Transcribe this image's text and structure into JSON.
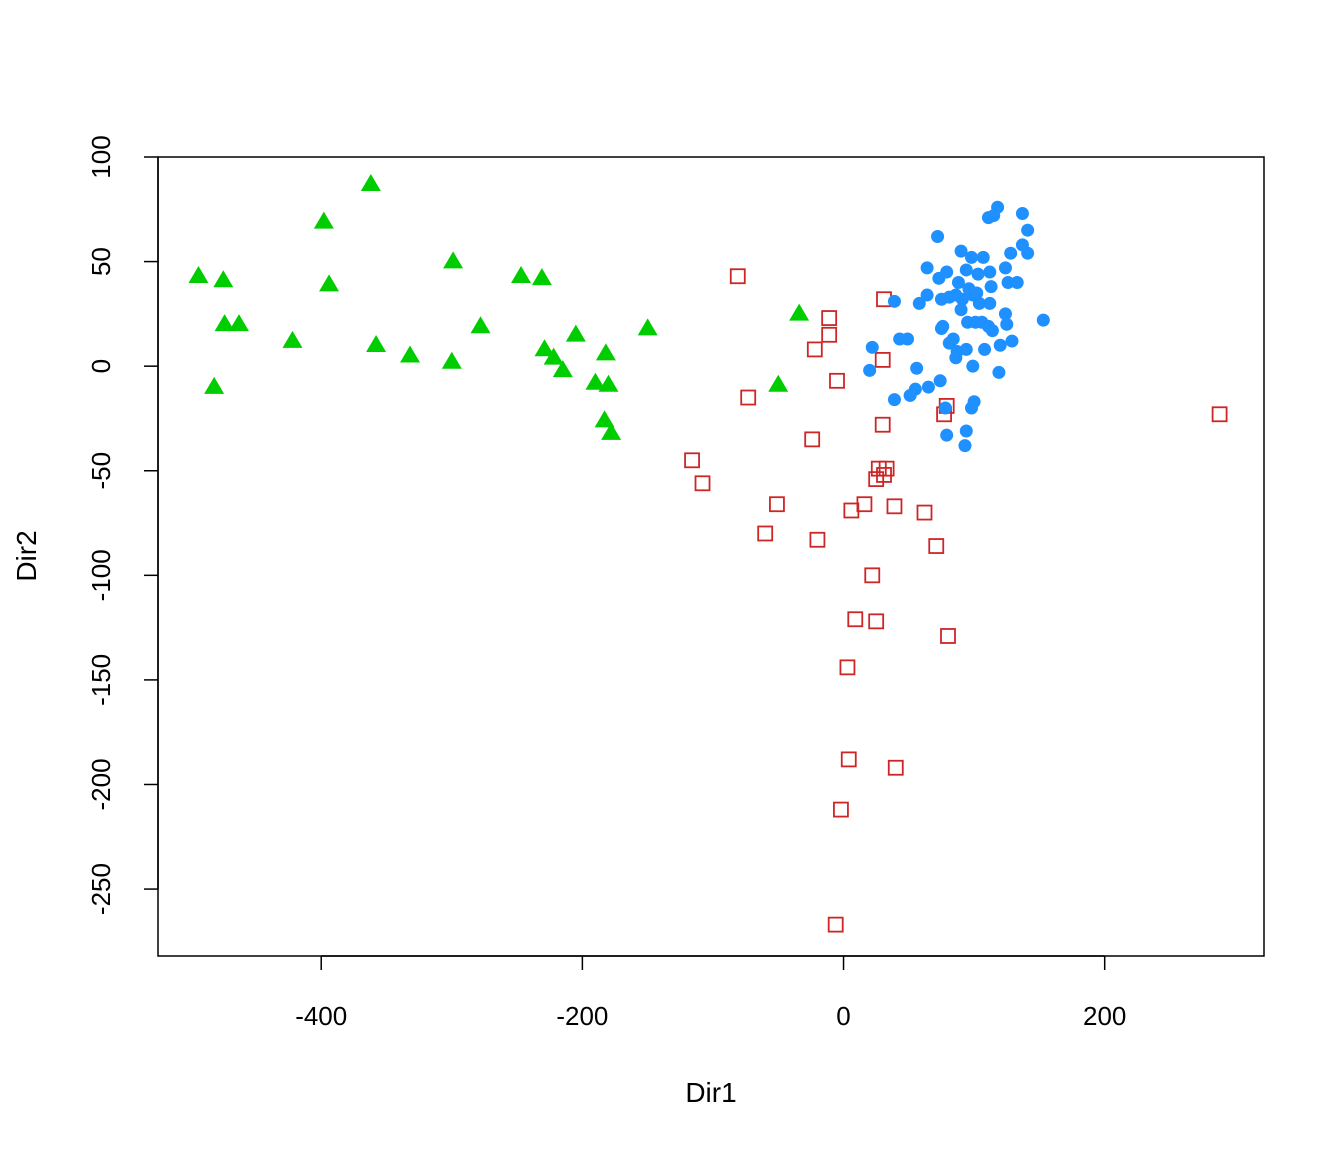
{
  "chart_data": {
    "type": "scatter",
    "title": "",
    "xlabel": "Dir1",
    "ylabel": "Dir2",
    "xlim": [
      -525,
      322
    ],
    "ylim": [
      -282,
      100
    ],
    "x_ticks": [
      -400,
      -200,
      0,
      200
    ],
    "y_ticks": [
      -250,
      -200,
      -150,
      -100,
      -50,
      0,
      50,
      100
    ],
    "grid": false,
    "legend": "none",
    "series": [
      {
        "marker": "filled-triangle",
        "color": "#00cd00",
        "points": [
          [
            -494,
            43
          ],
          [
            -475,
            41
          ],
          [
            -474,
            20
          ],
          [
            -463,
            20
          ],
          [
            -482,
            -10
          ],
          [
            -422,
            12
          ],
          [
            -398,
            69
          ],
          [
            -394,
            39
          ],
          [
            -362,
            87
          ],
          [
            -358,
            10
          ],
          [
            -332,
            5
          ],
          [
            -299,
            50
          ],
          [
            -300,
            2
          ],
          [
            -278,
            19
          ],
          [
            -247,
            43
          ],
          [
            -231,
            42
          ],
          [
            -229,
            8
          ],
          [
            -222,
            4
          ],
          [
            -215,
            -2
          ],
          [
            -205,
            15
          ],
          [
            -190,
            -8
          ],
          [
            -182,
            6
          ],
          [
            -180,
            -9
          ],
          [
            -183,
            -26
          ],
          [
            -178,
            -32
          ],
          [
            -150,
            18
          ],
          [
            -34,
            25
          ],
          [
            -50,
            -9
          ]
        ]
      },
      {
        "marker": "open-square",
        "color": "#cd2626",
        "points": [
          [
            -81,
            43
          ],
          [
            -11,
            23
          ],
          [
            -11,
            15
          ],
          [
            -22,
            8
          ],
          [
            -5,
            -7
          ],
          [
            -73,
            -15
          ],
          [
            31,
            32
          ],
          [
            30,
            3
          ],
          [
            77,
            -23
          ],
          [
            79,
            -19
          ],
          [
            30,
            -28
          ],
          [
            -24,
            -35
          ],
          [
            -116,
            -45
          ],
          [
            -108,
            -56
          ],
          [
            25,
            -54
          ],
          [
            27,
            -49
          ],
          [
            31,
            -52
          ],
          [
            33,
            -49
          ],
          [
            -51,
            -66
          ],
          [
            16,
            -66
          ],
          [
            39,
            -67
          ],
          [
            6,
            -69
          ],
          [
            62,
            -70
          ],
          [
            -60,
            -80
          ],
          [
            -20,
            -83
          ],
          [
            71,
            -86
          ],
          [
            22,
            -100
          ],
          [
            9,
            -121
          ],
          [
            25,
            -122
          ],
          [
            80,
            -129
          ],
          [
            3,
            -144
          ],
          [
            4,
            -188
          ],
          [
            40,
            -192
          ],
          [
            -2,
            -212
          ],
          [
            -6,
            -267
          ],
          [
            288,
            -23
          ]
        ]
      },
      {
        "marker": "filled-circle",
        "color": "#1e90ff",
        "points": [
          [
            118,
            76
          ],
          [
            111,
            71
          ],
          [
            115,
            72
          ],
          [
            137,
            73
          ],
          [
            141,
            65
          ],
          [
            72,
            62
          ],
          [
            90,
            55
          ],
          [
            98,
            52
          ],
          [
            107,
            52
          ],
          [
            128,
            54
          ],
          [
            141,
            54
          ],
          [
            137,
            58
          ],
          [
            64,
            47
          ],
          [
            73,
            42
          ],
          [
            79,
            45
          ],
          [
            94,
            46
          ],
          [
            103,
            44
          ],
          [
            112,
            45
          ],
          [
            124,
            47
          ],
          [
            88,
            40
          ],
          [
            96,
            37
          ],
          [
            102,
            35
          ],
          [
            113,
            38
          ],
          [
            126,
            40
          ],
          [
            133,
            40
          ],
          [
            39,
            31
          ],
          [
            58,
            30
          ],
          [
            64,
            34
          ],
          [
            75,
            32
          ],
          [
            81,
            33
          ],
          [
            86,
            34
          ],
          [
            91,
            32
          ],
          [
            99,
            34
          ],
          [
            104,
            30
          ],
          [
            112,
            30
          ],
          [
            124,
            25
          ],
          [
            90,
            27
          ],
          [
            95,
            21
          ],
          [
            101,
            21
          ],
          [
            106,
            21
          ],
          [
            111,
            19
          ],
          [
            114,
            17
          ],
          [
            125,
            20
          ],
          [
            22,
            9
          ],
          [
            43,
            13
          ],
          [
            49,
            13
          ],
          [
            75,
            18
          ],
          [
            76,
            19
          ],
          [
            81,
            11
          ],
          [
            84,
            13
          ],
          [
            86,
            4
          ],
          [
            87,
            7
          ],
          [
            94,
            8
          ],
          [
            108,
            8
          ],
          [
            120,
            10
          ],
          [
            129,
            12
          ],
          [
            20,
            -2
          ],
          [
            56,
            -1
          ],
          [
            74,
            -7
          ],
          [
            99,
            0
          ],
          [
            119,
            -3
          ],
          [
            39,
            -16
          ],
          [
            51,
            -14
          ],
          [
            55,
            -11
          ],
          [
            65,
            -10
          ],
          [
            78,
            -20
          ],
          [
            98,
            -20
          ],
          [
            100,
            -17
          ],
          [
            79,
            -33
          ],
          [
            94,
            -31
          ],
          [
            93,
            -38
          ],
          [
            153,
            22
          ]
        ]
      }
    ]
  }
}
